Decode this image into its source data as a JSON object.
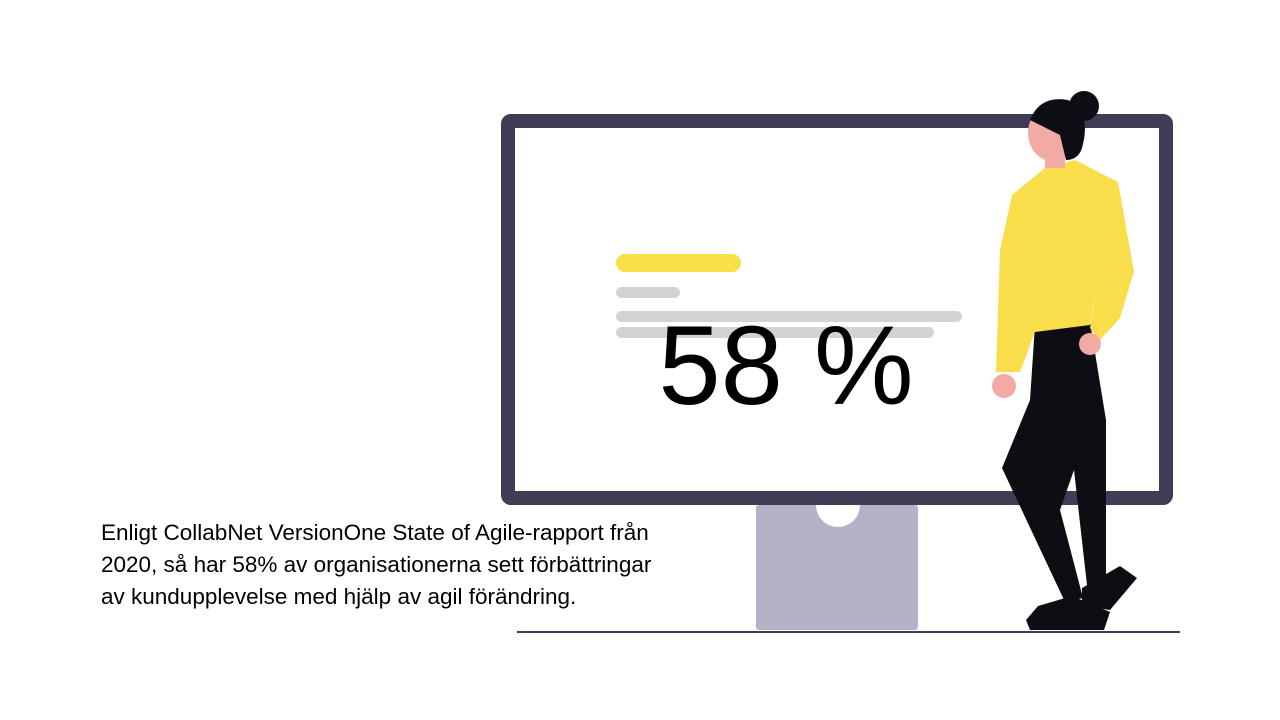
{
  "stat": "58 %",
  "caption": [
    "Enligt CollabNet VersionOne State of Agile-rapport från",
    "2020, så har 58% av organisationerna sett förbättringar",
    "av kundupplevelse med hjälp av agil förändring."
  ]
}
